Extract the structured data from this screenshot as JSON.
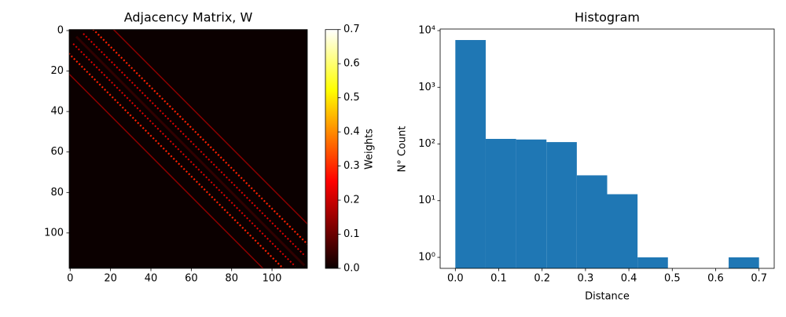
{
  "chart_data": [
    {
      "type": "heatmap",
      "title": "Adjacency Matrix, W",
      "xlim": [
        -0.5,
        117.5
      ],
      "ylim": [
        117.5,
        -0.5
      ],
      "xticks": [
        0,
        20,
        40,
        60,
        80,
        100
      ],
      "yticks": [
        0,
        20,
        40,
        60,
        80,
        100
      ],
      "colorbar": {
        "label": "Weights",
        "lim": [
          0,
          0.7
        ],
        "ticks": [
          {
            "value": 0,
            "label": "0.0"
          },
          0.1,
          0.2,
          0.3,
          0.4,
          0.5,
          0.6,
          0.7
        ]
      }
    },
    {
      "type": "histogram",
      "title": "Histogram",
      "xlabel": "Distance",
      "ylabel": "N° Count",
      "bins": [
        0,
        0.07,
        0.14,
        0.21,
        0.28,
        0.35,
        0.42,
        0.49,
        0.56,
        0.63,
        0.7
      ],
      "counts": [
        6820,
        123,
        120,
        108,
        28,
        13,
        1,
        0,
        0,
        1
      ],
      "color": "#1f77b4",
      "yscale": "log",
      "xlim": [
        -0.035,
        0.735
      ],
      "ylim": [
        0.64,
        10660
      ],
      "xticks": [
        {
          "value": 0,
          "label": "0.0"
        },
        0.1,
        0.2,
        0.3,
        0.4,
        0.5,
        0.6,
        0.7
      ],
      "yticks": [
        {
          "value": 1,
          "label": "10⁰"
        },
        {
          "value": 10,
          "label": "10¹"
        },
        {
          "value": 100,
          "label": "10²"
        },
        {
          "value": 1000,
          "label": "10³"
        },
        {
          "value": 10000,
          "label": "10⁴"
        }
      ]
    }
  ]
}
